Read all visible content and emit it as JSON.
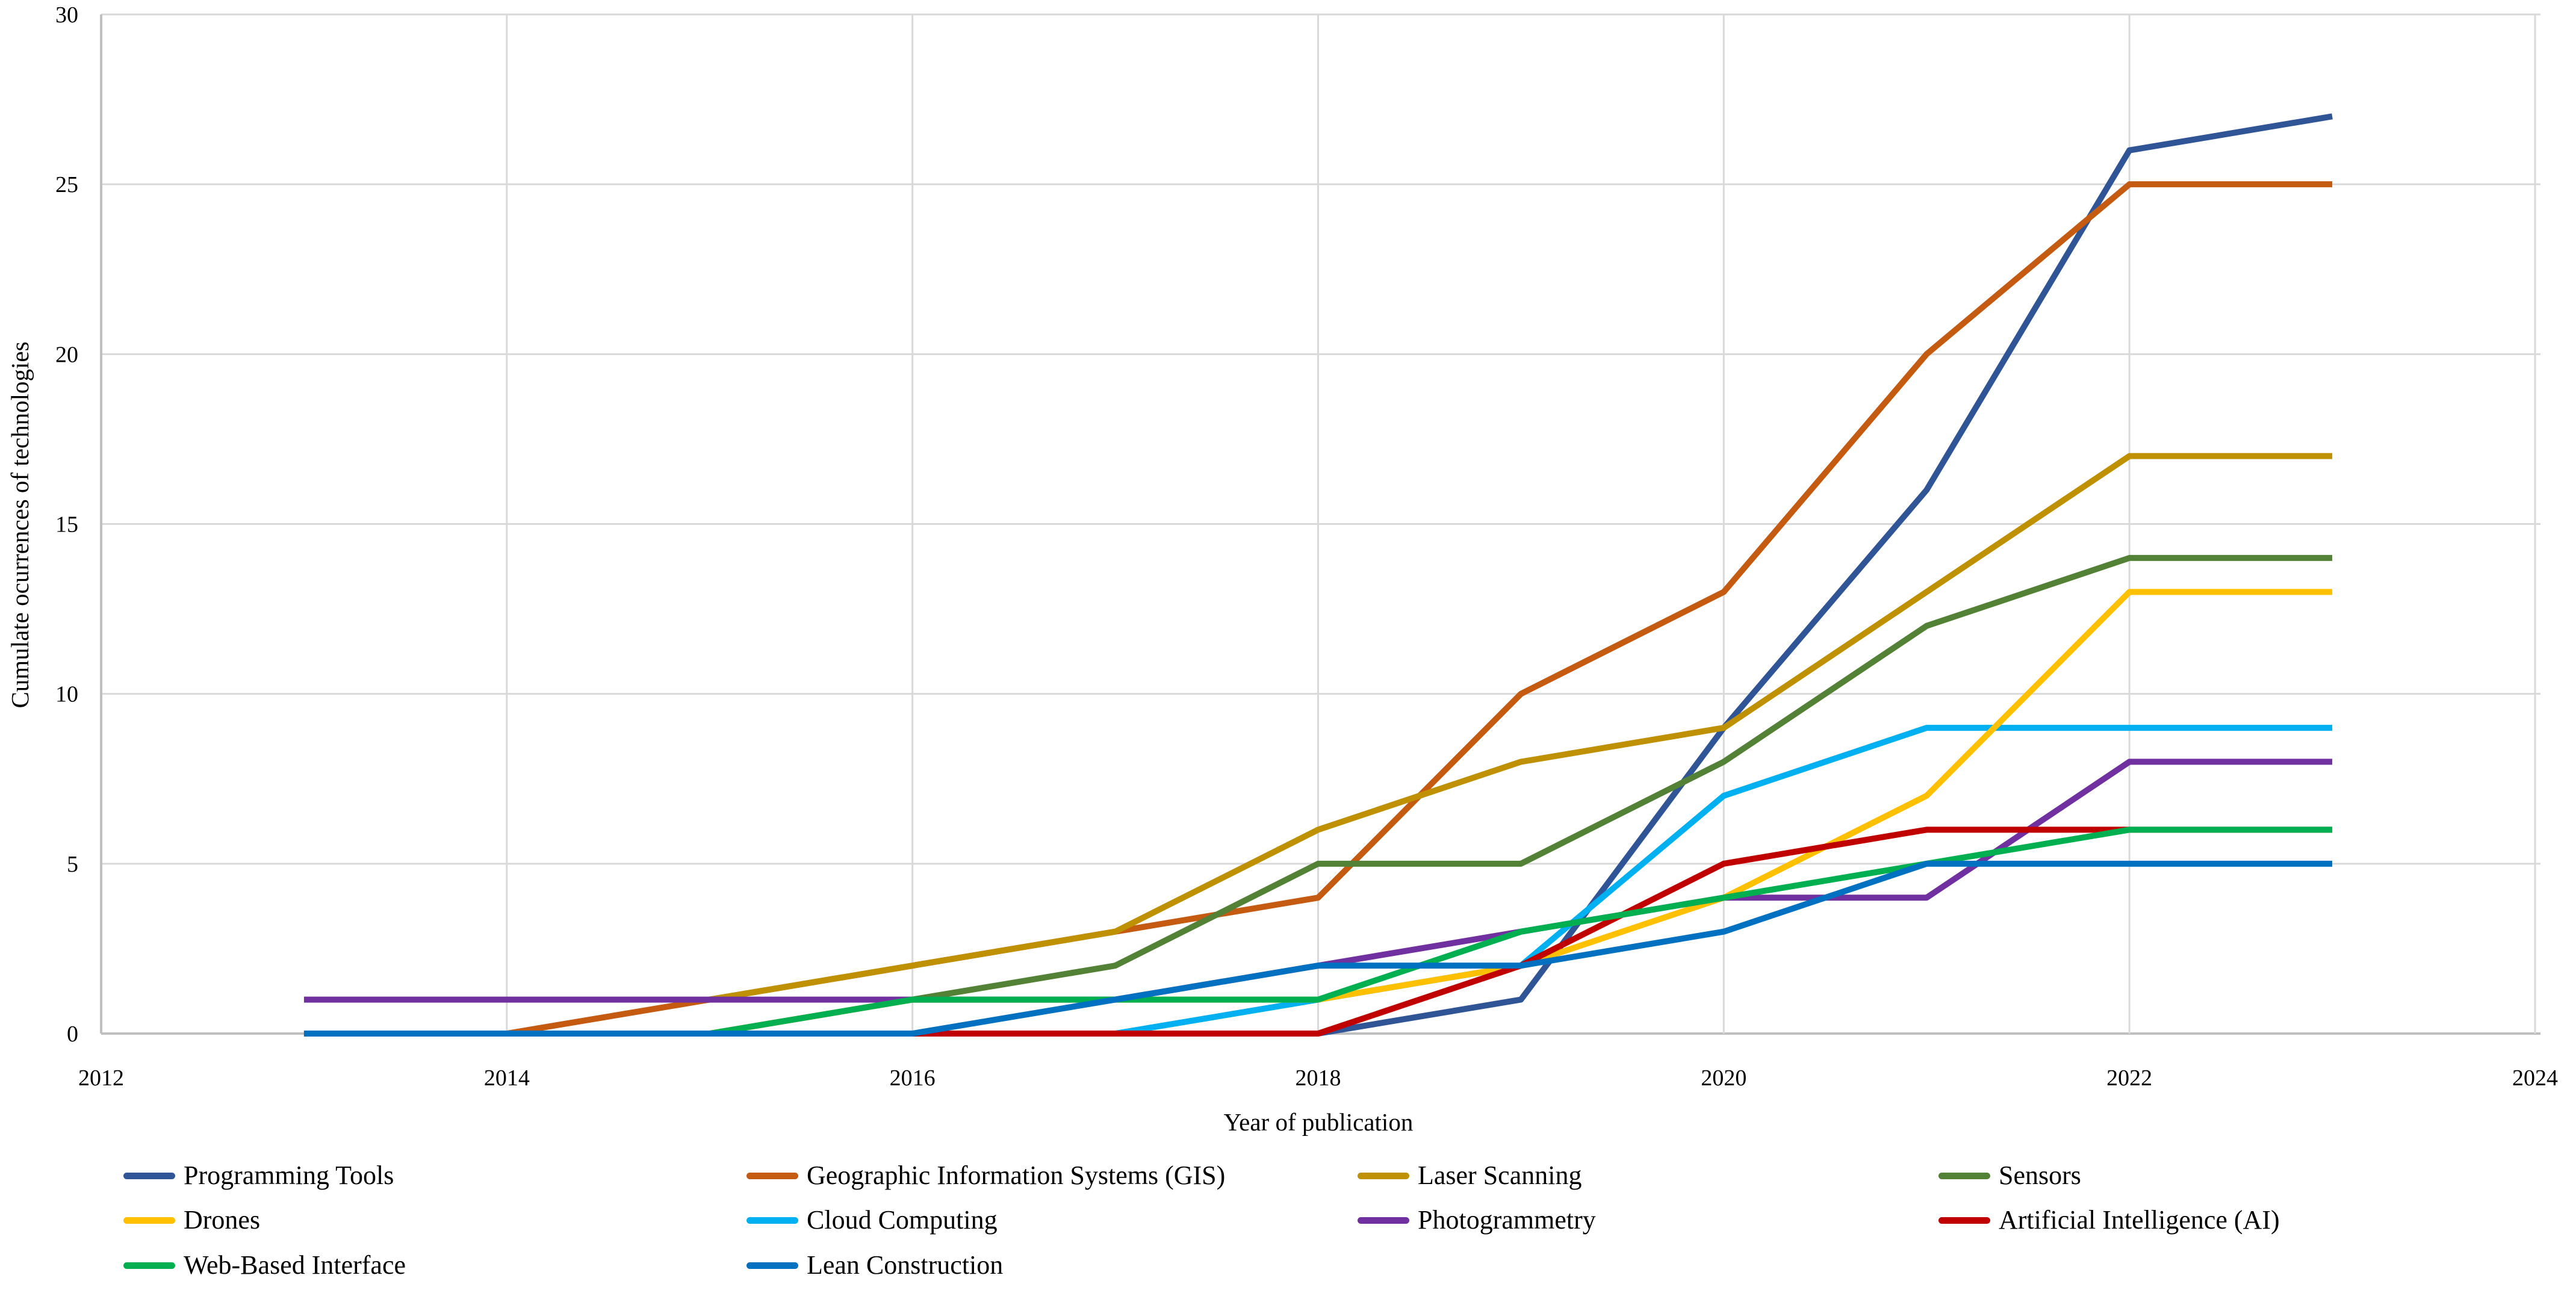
{
  "chart_data": {
    "type": "line",
    "title": "",
    "xlabel": "Year of publication",
    "ylabel": "Cumulate ocurrences of technologies",
    "xlim": [
      2012,
      2024
    ],
    "ylim": [
      0,
      30
    ],
    "x_ticks": [
      2012,
      2014,
      2016,
      2018,
      2020,
      2022,
      2024
    ],
    "y_ticks": [
      0,
      5,
      10,
      15,
      20,
      25,
      30
    ],
    "grid": "both, light gray, vertical lines at even years",
    "legend_position": "bottom, 4 columns, 3 rows",
    "gridline_color": "#D9D9D9",
    "axis_line_color": "#BFBFBF",
    "series": [
      {
        "name": "Programming Tools",
        "color": "#2F5597",
        "start_year": 2013,
        "values": [
          0,
          0,
          0,
          0,
          0,
          0,
          1,
          9,
          16,
          26,
          27
        ]
      },
      {
        "name": "Geographic Information Systems (GIS)",
        "color": "#C55A11",
        "start_year": 2014,
        "values": [
          0,
          1,
          2,
          3,
          4,
          10,
          13,
          20,
          25,
          25
        ]
      },
      {
        "name": "Laser Scanning",
        "color": "#BF9000",
        "start_year": 2015,
        "values": [
          1,
          2,
          3,
          6,
          8,
          9,
          13,
          17,
          17
        ]
      },
      {
        "name": "Sensors",
        "color": "#538135",
        "start_year": 2015,
        "values": [
          0,
          1,
          2,
          5,
          5,
          8,
          12,
          14,
          14
        ]
      },
      {
        "name": "Drones",
        "color": "#FFC000",
        "start_year": 2015,
        "values": [
          0,
          1,
          1,
          1,
          2,
          4,
          7,
          13,
          13
        ]
      },
      {
        "name": "Cloud Computing",
        "color": "#00B0F0",
        "start_year": 2017,
        "values": [
          0,
          1,
          2,
          7,
          9,
          9,
          9
        ]
      },
      {
        "name": "Photogrammetry",
        "color": "#7030A0",
        "start_year": 2013,
        "values": [
          1,
          1,
          1,
          1,
          1,
          2,
          3,
          4,
          4,
          8,
          8
        ]
      },
      {
        "name": "Artificial Intelligence (AI)",
        "color": "#C00000",
        "start_year": 2016,
        "values": [
          0,
          0,
          0,
          2,
          5,
          6,
          6,
          6
        ]
      },
      {
        "name": "Web-Based Interface",
        "color": "#00B050",
        "start_year": 2015,
        "values": [
          0,
          1,
          1,
          1,
          3,
          4,
          5,
          6,
          6
        ]
      },
      {
        "name": "Lean Construction",
        "color": "#0070C0",
        "start_year": 2013,
        "values": [
          0,
          0,
          0,
          0,
          1,
          2,
          2,
          3,
          5,
          5,
          5
        ]
      }
    ],
    "draw_order": [
      0,
      1,
      2,
      3,
      5,
      4,
      6,
      7,
      8,
      9
    ]
  }
}
